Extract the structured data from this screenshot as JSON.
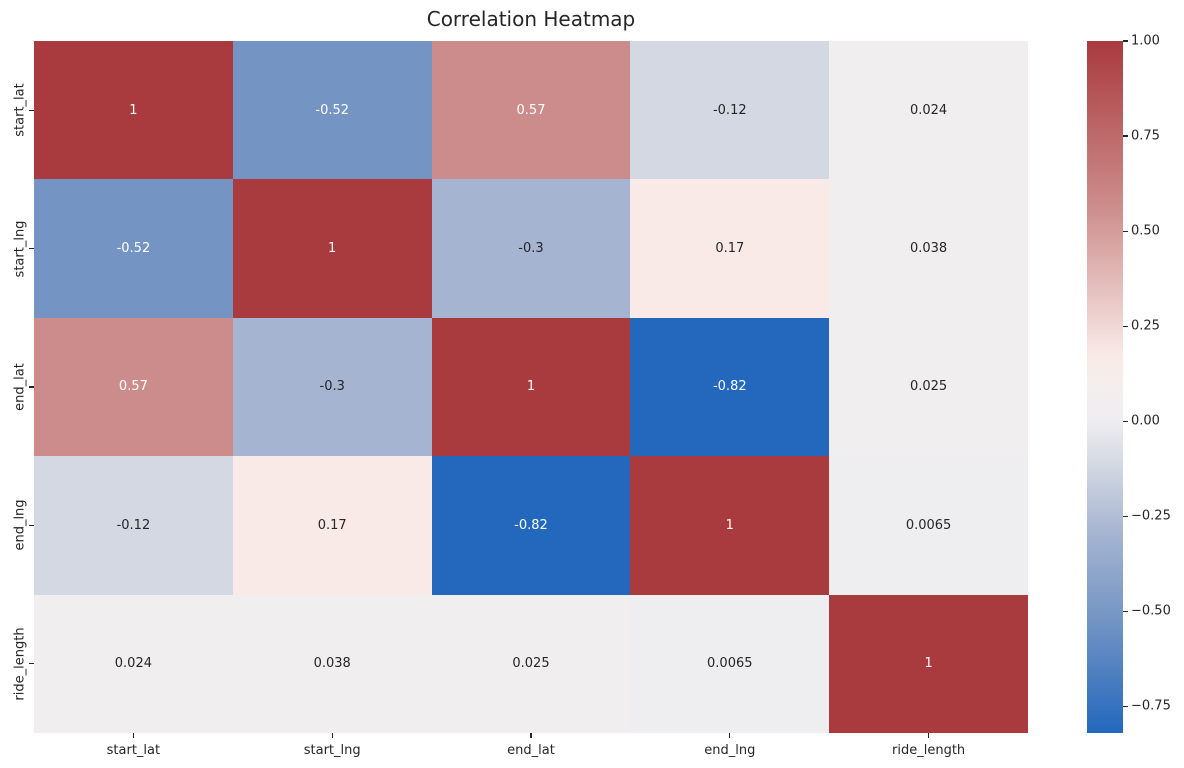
{
  "title": "Correlation Heatmap",
  "chart_data": {
    "type": "heatmap",
    "title": "Correlation Heatmap",
    "categories": [
      "start_lat",
      "start_lng",
      "end_lat",
      "end_lng",
      "ride_length"
    ],
    "x_tick_labels": [
      "start_lat",
      "start_lng",
      "end_lat",
      "end_lng",
      "ride_length"
    ],
    "y_tick_labels": [
      "start_lat",
      "start_lng",
      "end_lat",
      "end_lng",
      "ride_length"
    ],
    "matrix": [
      [
        1,
        -0.52,
        0.57,
        -0.12,
        0.024
      ],
      [
        -0.52,
        1,
        -0.3,
        0.17,
        0.038
      ],
      [
        0.57,
        -0.3,
        1,
        -0.82,
        0.025
      ],
      [
        -0.12,
        0.17,
        -0.82,
        1,
        0.0065
      ],
      [
        0.024,
        0.038,
        0.025,
        0.0065,
        1
      ]
    ],
    "annotations": [
      [
        "1",
        "-0.52",
        "0.57",
        "-0.12",
        "0.024"
      ],
      [
        "-0.52",
        "1",
        "-0.3",
        "0.17",
        "0.038"
      ],
      [
        "0.57",
        "-0.3",
        "1",
        "-0.82",
        "0.025"
      ],
      [
        "-0.12",
        "0.17",
        "-0.82",
        "1",
        "0.0065"
      ],
      [
        "0.024",
        "0.038",
        "0.025",
        "0.0065",
        "1"
      ]
    ],
    "vmin": -0.82,
    "vmax": 1.0,
    "colormap": {
      "name": "vlag",
      "stops": [
        [
          0.0,
          "#2368bd"
        ],
        [
          0.165,
          "#7495c4"
        ],
        [
          0.286,
          "#a4b4d1"
        ],
        [
          0.385,
          "#d3d8e2"
        ],
        [
          0.45,
          "#eeedf0"
        ],
        [
          0.5,
          "#f4efee"
        ],
        [
          0.545,
          "#f9eae7"
        ],
        [
          0.763,
          "#cc8c8b"
        ],
        [
          1.0,
          "#a93a3e"
        ]
      ]
    },
    "annotation_text_colors": {
      "light": "#ffffff",
      "dark": "#262626"
    },
    "colorbar": {
      "tick_labels": [
        "1.00",
        "0.75",
        "0.50",
        "0.25",
        "0.00",
        "−0.25",
        "−0.50",
        "−0.75"
      ],
      "tick_values": [
        1.0,
        0.75,
        0.5,
        0.25,
        0.0,
        -0.25,
        -0.5,
        -0.75
      ]
    },
    "legend_position": "right-colorbar",
    "grid": false
  }
}
